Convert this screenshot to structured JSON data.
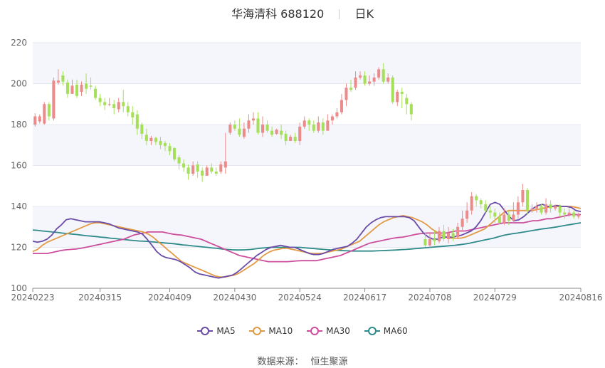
{
  "header": {
    "stock_name": "华海清科",
    "stock_code": "688120",
    "period": "日K"
  },
  "source": {
    "label": "数据来源：",
    "value": "恒生聚源"
  },
  "colors": {
    "up": "#ec8b8b",
    "down": "#a6e05a",
    "ma5": "#6a4ca8",
    "ma10": "#e29a45",
    "ma30": "#cc4e9c",
    "ma60": "#2f8a8a",
    "grid": "#e6e8f0",
    "band": "#f5f6fb",
    "axis": "#999999"
  },
  "chart_data": {
    "type": "candlestick",
    "title": "华海清科 688120 日K",
    "ylim": [
      100,
      220
    ],
    "yticks": [
      100,
      120,
      140,
      160,
      180,
      200,
      220
    ],
    "xtick_labels": [
      "20240223",
      "20240315",
      "20240409",
      "20240430",
      "20240524",
      "20240617",
      "20240708",
      "20240729",
      "20240816"
    ],
    "xtick_index": [
      0,
      14,
      29,
      43,
      57,
      71,
      85,
      99,
      113
    ],
    "legend": [
      {
        "name": "MA5",
        "color_key": "ma5"
      },
      {
        "name": "MA10",
        "color_key": "ma10"
      },
      {
        "name": "MA30",
        "color_key": "ma30"
      },
      {
        "name": "MA60",
        "color_key": "ma60"
      }
    ],
    "candles": [
      [
        180,
        184,
        179,
        185.5
      ],
      [
        181.5,
        184,
        180.5,
        185
      ],
      [
        180.5,
        190,
        180,
        191
      ],
      [
        190,
        184,
        182,
        191
      ],
      [
        183,
        201.5,
        182,
        203
      ],
      [
        200.5,
        201.5,
        199.5,
        207
      ],
      [
        204,
        201,
        199,
        206
      ],
      [
        200.5,
        195,
        193,
        202
      ],
      [
        195,
        199,
        195,
        202
      ],
      [
        199.5,
        194,
        193,
        202
      ],
      [
        196,
        199.5,
        194,
        201
      ],
      [
        200,
        197.5,
        195,
        205
      ],
      [
        199,
        198.5,
        197,
        203
      ],
      [
        197.5,
        193,
        192,
        199
      ],
      [
        193,
        191,
        189,
        195
      ],
      [
        191,
        189.5,
        187,
        193
      ],
      [
        190,
        190,
        189,
        193
      ],
      [
        190,
        188,
        185,
        192
      ],
      [
        187.5,
        191,
        186,
        193
      ],
      [
        191,
        189,
        186,
        197
      ],
      [
        189,
        186,
        184,
        191
      ],
      [
        186,
        183.5,
        180,
        189
      ],
      [
        185,
        178,
        175,
        187
      ],
      [
        180,
        175.5,
        173,
        181
      ],
      [
        175,
        172,
        170,
        178
      ],
      [
        172,
        173.5,
        170,
        174.5
      ],
      [
        173.5,
        171.5,
        170,
        174
      ],
      [
        172,
        170,
        168,
        174
      ],
      [
        171,
        169.5,
        167,
        172
      ],
      [
        169.5,
        167,
        165,
        171
      ],
      [
        168.5,
        163,
        162,
        169
      ],
      [
        164,
        161,
        158,
        165
      ],
      [
        161,
        159,
        157,
        163
      ],
      [
        159,
        156,
        153,
        160.5
      ],
      [
        156,
        160,
        155,
        162
      ],
      [
        160.5,
        157,
        154,
        162
      ],
      [
        157.5,
        155,
        152,
        159
      ],
      [
        155,
        159,
        156,
        160
      ],
      [
        159,
        157,
        156,
        161
      ],
      [
        157,
        156,
        155,
        159
      ],
      [
        157,
        160.5,
        156,
        162
      ],
      [
        159,
        162,
        156,
        176
      ],
      [
        176,
        180,
        175,
        181
      ],
      [
        180,
        178,
        177,
        182
      ],
      [
        178,
        175,
        174,
        183
      ],
      [
        174,
        178,
        173,
        181
      ],
      [
        178,
        182,
        176,
        185
      ],
      [
        182,
        183,
        180,
        186
      ],
      [
        183,
        176,
        175,
        186
      ],
      [
        176,
        180,
        174,
        184
      ],
      [
        180,
        177,
        176,
        182
      ],
      [
        177,
        175,
        174,
        179
      ],
      [
        175.5,
        177.5,
        175,
        178
      ],
      [
        177,
        175,
        173,
        180
      ],
      [
        175.5,
        172,
        170,
        177
      ],
      [
        172,
        174,
        172,
        175
      ],
      [
        174,
        172,
        171,
        176
      ],
      [
        172,
        179,
        170,
        181
      ],
      [
        179,
        182,
        178,
        184
      ],
      [
        182,
        180,
        177,
        183
      ],
      [
        180,
        177,
        176,
        182
      ],
      [
        177,
        181,
        176,
        184
      ],
      [
        181,
        177,
        175,
        183
      ],
      [
        177,
        182,
        177,
        185
      ],
      [
        182,
        184,
        180,
        185
      ],
      [
        184,
        186,
        183,
        188
      ],
      [
        186,
        192,
        185,
        195
      ],
      [
        192,
        198,
        189,
        200
      ],
      [
        198,
        197,
        196,
        202
      ],
      [
        198,
        203,
        197,
        206
      ],
      [
        203,
        204,
        202,
        206
      ],
      [
        204,
        200,
        199,
        206
      ],
      [
        200,
        201,
        199,
        204
      ],
      [
        201,
        203,
        199,
        205
      ],
      [
        203,
        207,
        202,
        208
      ],
      [
        207,
        201,
        200,
        210
      ],
      [
        201,
        203,
        200,
        205
      ],
      [
        203,
        191,
        190,
        204
      ],
      [
        191,
        196,
        189,
        197
      ],
      [
        196,
        195,
        188,
        198
      ],
      [
        193,
        190,
        185,
        195
      ],
      [
        190,
        185,
        182,
        191
      ],
      [
        null,
        null,
        null,
        null
      ],
      [
        null,
        null,
        null,
        null
      ],
      [
        124,
        121,
        120,
        127
      ],
      [
        121,
        124,
        120,
        127
      ],
      [
        124,
        123,
        121,
        128
      ],
      [
        123,
        128,
        122,
        130
      ],
      [
        128,
        124,
        123,
        131
      ],
      [
        124,
        127,
        122,
        130
      ],
      [
        127,
        125,
        123,
        129
      ],
      [
        125,
        130,
        124,
        132
      ],
      [
        130,
        134,
        128,
        138
      ],
      [
        134,
        138,
        132,
        142
      ],
      [
        138,
        145,
        136,
        147
      ],
      [
        145,
        143,
        140,
        146
      ],
      [
        143,
        141,
        139,
        144
      ],
      [
        141,
        138,
        137,
        143
      ],
      [
        138,
        137,
        134,
        140
      ],
      [
        137,
        135,
        132,
        139
      ],
      [
        135,
        132,
        131,
        137
      ],
      [
        132,
        136,
        131,
        139
      ],
      [
        136,
        133,
        131,
        138
      ],
      [
        133,
        136,
        132,
        142
      ],
      [
        136,
        142,
        134,
        145
      ],
      [
        142,
        148,
        140,
        151
      ],
      [
        148,
        138,
        136,
        149
      ],
      [
        138,
        139,
        137,
        141
      ],
      [
        139,
        140,
        137,
        142
      ],
      [
        140,
        137,
        136,
        141
      ],
      [
        137,
        141,
        136,
        144
      ],
      [
        141,
        139,
        137,
        143
      ],
      [
        139,
        140,
        138,
        141
      ],
      [
        140,
        137,
        135,
        141
      ],
      [
        137,
        136,
        134,
        139
      ],
      [
        136,
        137,
        135,
        139
      ],
      [
        137,
        135,
        134,
        138
      ],
      [
        135,
        136,
        134,
        137
      ]
    ],
    "ma5": [
      123,
      122.5,
      123,
      124,
      126,
      129,
      131,
      133.5,
      134,
      133.5,
      133,
      132.5,
      132.5,
      132.5,
      132.5,
      132,
      131.5,
      130.5,
      129.5,
      129,
      128.5,
      128,
      127.5,
      126.5,
      124,
      121,
      118,
      116,
      115,
      114.5,
      114,
      113,
      111.5,
      110,
      108,
      107,
      106.5,
      106,
      105.5,
      105,
      105.5,
      106,
      106.5,
      108,
      110,
      112,
      114,
      116,
      117.5,
      119,
      120,
      120.5,
      121,
      120.5,
      120,
      120,
      119,
      118,
      117,
      116.5,
      116.5,
      117,
      118,
      119,
      119.5,
      120,
      120.5,
      122,
      124,
      127,
      130,
      132,
      133.5,
      134.5,
      135,
      135,
      135,
      135,
      135,
      134.5,
      133,
      130,
      127,
      125,
      124,
      124,
      125,
      125,
      125,
      125.5,
      126,
      127,
      128,
      130,
      133,
      137,
      141,
      142,
      141,
      138,
      135,
      133,
      133.5,
      135,
      137,
      139,
      140.5,
      141,
      140,
      140,
      140.5,
      140,
      140,
      139.5,
      138,
      137.5
    ],
    "ma10": [
      118,
      119,
      121,
      122.5,
      123.5,
      124.5,
      125.5,
      126.5,
      127.5,
      128.5,
      129.5,
      130.5,
      131.5,
      132,
      132,
      131.5,
      131,
      130.5,
      130,
      129.5,
      129,
      128.5,
      128,
      127.5,
      126.5,
      125,
      123,
      121,
      119,
      117,
      115,
      113,
      112,
      111,
      110,
      109,
      108,
      107,
      106,
      105.5,
      105.5,
      106,
      106.5,
      107.5,
      109,
      110.5,
      112,
      114,
      116,
      117.5,
      118.5,
      119,
      119.5,
      119.5,
      119,
      118.5,
      118,
      117.5,
      117,
      117,
      117,
      117.5,
      118,
      118.5,
      119,
      120,
      121,
      122,
      123,
      125,
      127,
      129,
      131,
      132.5,
      133.5,
      134.5,
      135,
      135.5,
      135,
      134.5,
      133.5,
      132.5,
      131,
      129,
      127.5,
      126,
      125,
      124.5,
      124.5,
      124.5,
      125,
      126,
      127,
      128,
      129,
      131,
      133,
      135,
      137,
      138,
      138,
      138,
      138,
      138,
      138,
      138.5,
      139,
      139.5,
      140,
      140,
      140,
      140,
      140,
      139.5,
      139
    ],
    "ma30": [
      117,
      117,
      117,
      117,
      117.5,
      118,
      118.5,
      118.8,
      119,
      119.2,
      119.5,
      120,
      120.5,
      121,
      121.5,
      122,
      122.5,
      123,
      123.5,
      124,
      125,
      126,
      126.5,
      127,
      127.5,
      127.5,
      127.5,
      127.5,
      127,
      126.5,
      126.2,
      126,
      125.5,
      125,
      124.5,
      124,
      123,
      122,
      121,
      120,
      119,
      118,
      117,
      116,
      115.5,
      115,
      114.5,
      114,
      113.5,
      113,
      113,
      113,
      113,
      113,
      113.2,
      113.4,
      113.5,
      113.5,
      113.5,
      113.5,
      114,
      114.5,
      115,
      115.5,
      116,
      117,
      118,
      119,
      120,
      121,
      122,
      122.5,
      123,
      123.5,
      124,
      124.5,
      124.8,
      125,
      125.5,
      126,
      126.5,
      126.8,
      127,
      127,
      127,
      127,
      127,
      127.5,
      128,
      128,
      128,
      128.5,
      129,
      129.5,
      130,
      130.5,
      131,
      131.5,
      132,
      132,
      132,
      132,
      132,
      132.5,
      133,
      133,
      133.5,
      134,
      134,
      134.5,
      135,
      135.5,
      136,
      136,
      136
    ],
    "ma60": [
      128.5,
      128.3,
      128,
      127.8,
      127.5,
      127.3,
      127,
      126.8,
      126.5,
      126.3,
      126,
      125.7,
      125.5,
      125.3,
      125,
      124.8,
      124.5,
      124.3,
      124,
      123.8,
      123.5,
      123.3,
      123.1,
      123,
      122.8,
      122.6,
      122.4,
      122.2,
      122,
      121.8,
      121.5,
      121.2,
      121,
      120.7,
      120.5,
      120.2,
      120,
      119.7,
      119.5,
      119.2,
      119,
      118.8,
      118.7,
      118.7,
      118.8,
      119,
      119.3,
      119.6,
      119.8,
      120,
      120,
      120,
      120,
      120,
      120,
      120,
      119.8,
      119.6,
      119.4,
      119.2,
      119,
      118.8,
      118.6,
      118.5,
      118.4,
      118.3,
      118.2,
      118.2,
      118.2,
      118.2,
      118.2,
      118.3,
      118.4,
      118.5,
      118.6,
      118.7,
      118.9,
      119,
      119.2,
      119.4,
      119.6,
      119.8,
      120,
      120.2,
      120.4,
      120.6,
      120.8,
      121,
      121.3,
      121.6,
      122,
      122.5,
      123,
      123.5,
      124,
      124.5,
      125.2,
      125.8,
      126.3,
      126.7,
      127,
      127.4,
      127.8,
      128.2,
      128.6,
      129,
      129.3,
      129.6,
      130,
      130.4,
      130.8,
      131.2,
      131.6,
      132
    ]
  }
}
